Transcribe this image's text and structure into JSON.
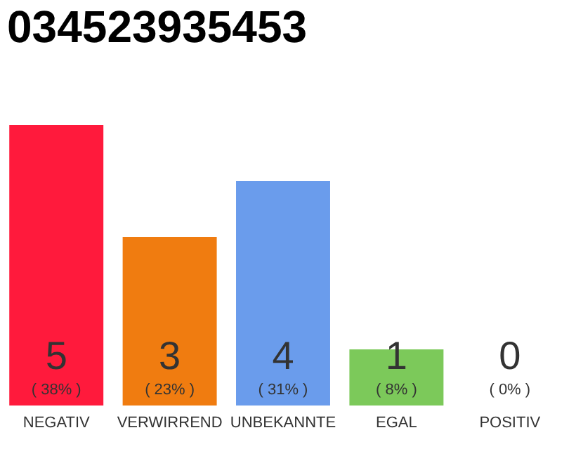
{
  "chart_data": {
    "type": "bar",
    "title": "034523935453",
    "categories": [
      "NEGATIV",
      "VERWIRREND",
      "UNBEKANNTE",
      "EGAL",
      "POSITIV"
    ],
    "values": [
      5,
      3,
      4,
      1,
      0
    ],
    "colors": [
      "#ff1a3c",
      "#f07c10",
      "#6a9cec",
      "#7cc95a",
      "#cccccc"
    ],
    "ylim": [
      0,
      5
    ],
    "tick_labels": "x",
    "legend": false,
    "data_labels": true,
    "annotations": [
      {
        "text": "( 38% )",
        "x": "NEGATIV",
        "y": 0
      },
      {
        "text": "( 23% )",
        "x": "VERWIRREND",
        "y": 0
      },
      {
        "text": "( 31% )",
        "x": "UNBEKANNTE",
        "y": 0
      },
      {
        "text": "( 8% )",
        "x": "EGAL",
        "y": 0
      },
      {
        "text": "( 0% )",
        "x": "POSITIV",
        "y": 0
      }
    ]
  }
}
